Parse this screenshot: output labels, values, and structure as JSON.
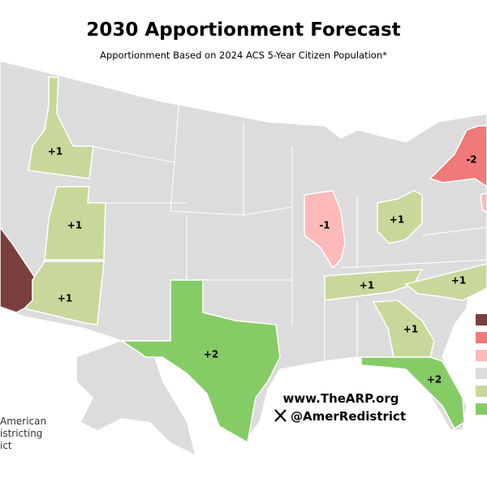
{
  "header": {
    "title": "2030 Apportionment Forecast",
    "subtitle": "Apportionment Based on 2024 ACS 5-Year Citizen Population*"
  },
  "states": [
    {
      "label": "+1"
    },
    {
      "label": "+1"
    },
    {
      "label": "+1"
    },
    {
      "label": "+2"
    },
    {
      "label": "-1"
    },
    {
      "label": "+1"
    },
    {
      "label": "-2"
    },
    {
      "label": "+1"
    },
    {
      "label": "+1"
    },
    {
      "label": "+1"
    },
    {
      "label": "+2"
    }
  ],
  "footer": {
    "website": "www.TheARP.org",
    "handle": "@AmerRedistrict"
  },
  "logo": {
    "lines": [
      "American",
      "istricting",
      "ict"
    ]
  }
}
